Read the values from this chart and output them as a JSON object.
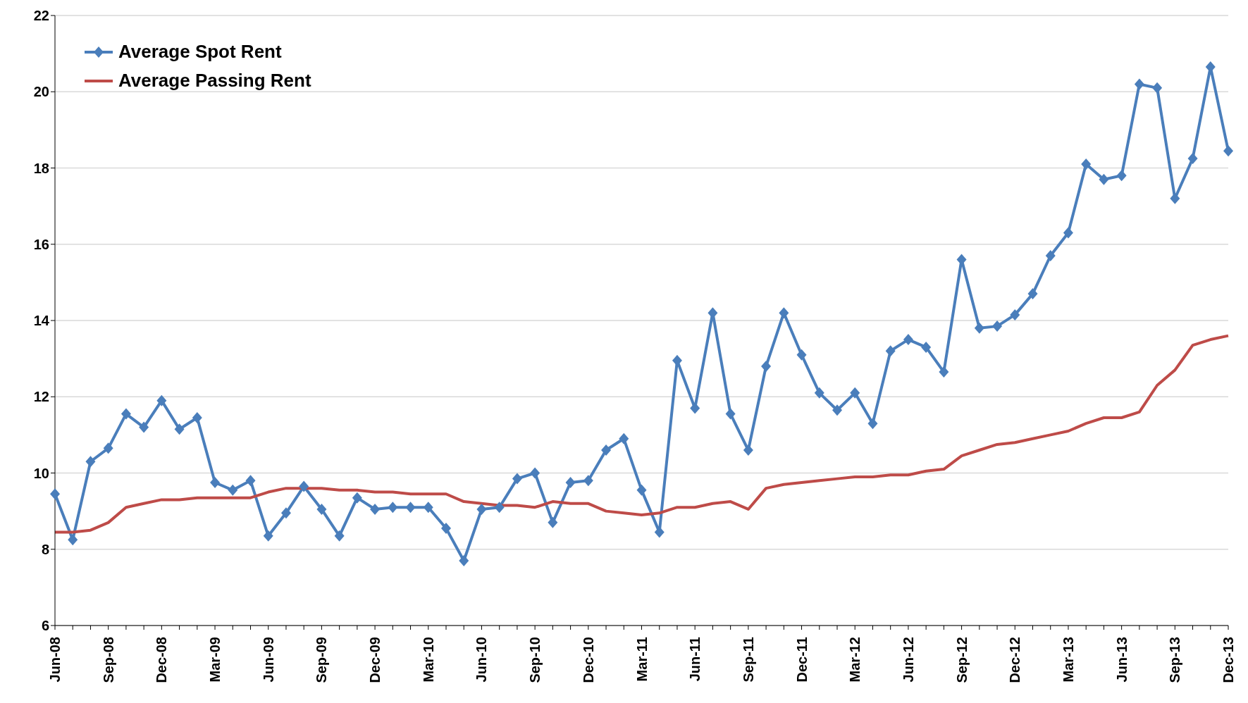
{
  "chart_data": {
    "type": "line",
    "categories": [
      "Jun-08",
      null,
      null,
      "Sep-08",
      null,
      null,
      "Dec-08",
      null,
      null,
      "Mar-09",
      null,
      null,
      "Jun-09",
      null,
      null,
      "Sep-09",
      null,
      null,
      "Dec-09",
      null,
      null,
      "Mar-10",
      null,
      null,
      "Jun-10",
      null,
      null,
      "Sep-10",
      null,
      null,
      "Dec-10",
      null,
      null,
      "Mar-11",
      null,
      null,
      "Jun-11",
      null,
      null,
      "Sep-11",
      null,
      null,
      "Dec-11",
      null,
      null,
      "Mar-12",
      null,
      null,
      "Jun-12",
      null,
      null,
      "Sep-12",
      null,
      null,
      "Dec-12",
      null,
      null,
      "Mar-13",
      null,
      null,
      "Jun-13",
      null,
      null,
      "Sep-13",
      null,
      null,
      "Dec-13"
    ],
    "series": [
      {
        "name": "Average Spot Rent",
        "color": "#4a7ebb",
        "marker": "diamond",
        "values": [
          9.45,
          8.25,
          10.3,
          10.65,
          11.55,
          11.2,
          11.9,
          11.15,
          11.45,
          9.75,
          9.55,
          9.8,
          8.35,
          8.95,
          9.65,
          9.05,
          8.35,
          9.35,
          9.05,
          9.1,
          9.1,
          9.1,
          8.55,
          7.7,
          9.05,
          9.1,
          9.85,
          10.0,
          8.7,
          9.75,
          9.8,
          10.6,
          10.9,
          9.55,
          8.45,
          12.95,
          11.7,
          14.2,
          11.55,
          10.6,
          12.8,
          14.2,
          13.1,
          12.1,
          11.65,
          12.1,
          11.3,
          13.2,
          13.5,
          13.3,
          12.65,
          15.6,
          13.8,
          13.85,
          14.15,
          14.7,
          15.7,
          16.3,
          18.1,
          17.7,
          17.8,
          20.2,
          20.1,
          17.2,
          18.25,
          20.65,
          18.45
        ]
      },
      {
        "name": "Average Passing Rent",
        "color": "#be4b48",
        "marker": "none",
        "values": [
          8.45,
          8.45,
          8.5,
          8.7,
          9.1,
          9.2,
          9.3,
          9.3,
          9.35,
          9.35,
          9.35,
          9.35,
          9.5,
          9.6,
          9.6,
          9.6,
          9.55,
          9.55,
          9.5,
          9.5,
          9.45,
          9.45,
          9.45,
          9.25,
          9.2,
          9.15,
          9.15,
          9.1,
          9.25,
          9.2,
          9.2,
          9.0,
          8.95,
          8.9,
          8.95,
          9.1,
          9.1,
          9.2,
          9.25,
          9.05,
          9.6,
          9.7,
          9.75,
          9.8,
          9.85,
          9.9,
          9.9,
          9.95,
          9.95,
          10.05,
          10.1,
          10.45,
          10.6,
          10.75,
          10.8,
          10.9,
          11.0,
          11.1,
          11.3,
          11.45,
          11.45,
          11.6,
          12.3,
          12.7,
          13.35,
          13.5,
          13.6
        ]
      }
    ],
    "ylim": [
      6,
      22
    ],
    "yticks": [
      6,
      8,
      10,
      12,
      14,
      16,
      18,
      20,
      22
    ],
    "grid": "y",
    "legend": "top left",
    "line_style": "solid"
  }
}
